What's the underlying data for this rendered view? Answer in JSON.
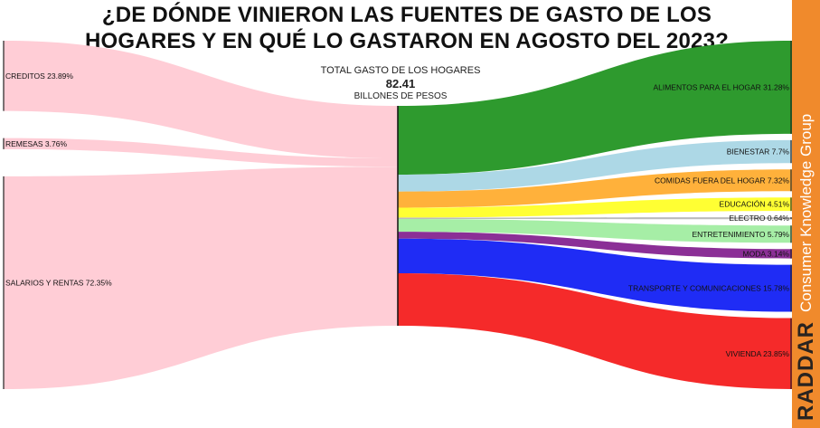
{
  "title": {
    "line1": "¿DE DÓNDE VINIERON LAS FUENTES DE GASTO DE LOS",
    "line2": "HOGARES Y EN QUÉ LO GASTARON EN AGOSTO DEL 2023?"
  },
  "center": {
    "label": "TOTAL GASTO DE LOS HOGARES",
    "value": "82.41",
    "unit": "BILLONES DE PESOS"
  },
  "brand": {
    "logo": "RADDAR",
    "subtitle": "Consumer Knowledge Group"
  },
  "chart_data": {
    "type": "sankey",
    "total": 82.41,
    "sources": [
      {
        "label": "CREDITOS 23.89%",
        "value": 23.89,
        "color": "#ffcdd6"
      },
      {
        "label": "REMESAS 3.76%",
        "value": 3.76,
        "color": "#ffcdd6"
      },
      {
        "label": "SALARIOS Y RENTAS 72.35%",
        "value": 72.35,
        "color": "#ffcdd6"
      }
    ],
    "targets": [
      {
        "label": "ALIMENTOS PARA EL HOGAR 31.28%",
        "value": 31.28,
        "color": "#2e9a2e"
      },
      {
        "label": "BIENESTAR 7.7%",
        "value": 7.7,
        "color": "#add8e6"
      },
      {
        "label": "COMIDAS FUERA DEL HOGAR 7.32%",
        "value": 7.32,
        "color": "#ffb13b"
      },
      {
        "label": "EDUCACIÓN 4.51%",
        "value": 4.51,
        "color": "#ffff33"
      },
      {
        "label": "ELECTRO 0.64%",
        "value": 0.64,
        "color": "#bbbbbb"
      },
      {
        "label": "ENTRETENIMIENTO 5.79%",
        "value": 5.79,
        "color": "#a6eea6"
      },
      {
        "label": "MODA 3.14%",
        "value": 3.14,
        "color": "#8b2f96"
      },
      {
        "label": "TRANSPORTE Y COMUNICACIONES 15.78%",
        "value": 15.78,
        "color": "#1f2cf5"
      },
      {
        "label": "VIVIENDA 23.85%",
        "value": 23.85,
        "color": "#f52a2a"
      }
    ]
  }
}
